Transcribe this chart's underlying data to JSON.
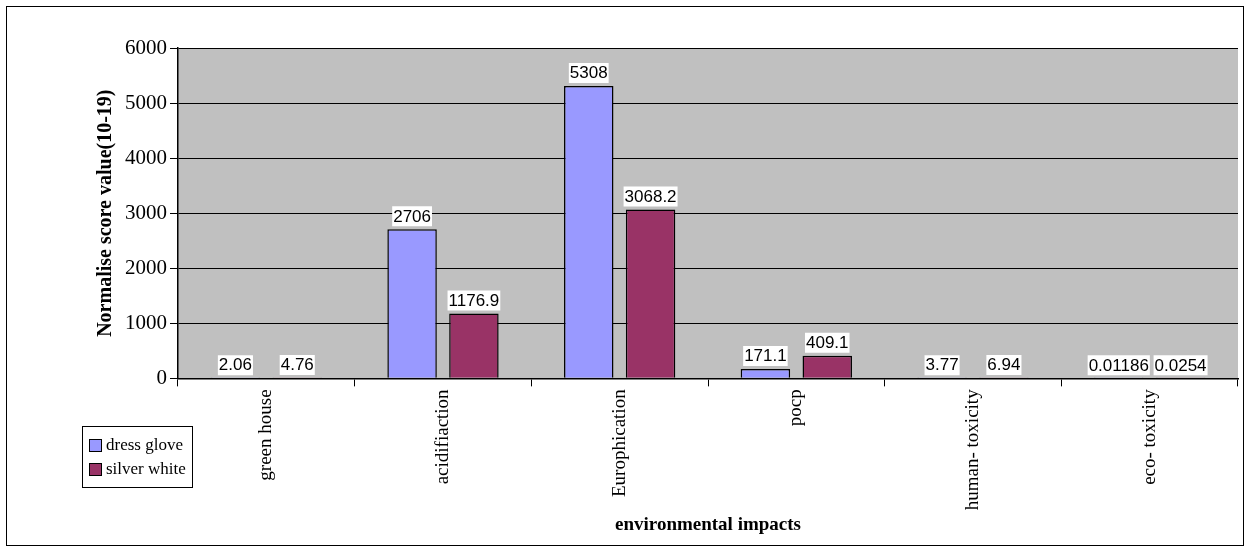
{
  "chart_data": {
    "type": "bar",
    "xlabel": "environmental impacts",
    "ylabel": "Normalise score value(10-19)",
    "categories": [
      "green house",
      "acidifiaction",
      "Europhication",
      "pocp",
      "human- toxicity",
      "eco- toxicity"
    ],
    "series": [
      {
        "name": "dress glove",
        "color": "#9999ff",
        "values": [
          2.06,
          2706,
          5308,
          171.1,
          3.77,
          0.01186
        ]
      },
      {
        "name": "silver white",
        "color": "#993366",
        "values": [
          4.76,
          1176.9,
          3068.2,
          409.1,
          6.94,
          0.0254
        ]
      }
    ],
    "ylim": [
      0,
      6000
    ],
    "yticks": [
      0,
      1000,
      2000,
      3000,
      4000,
      5000,
      6000
    ],
    "grid": "y",
    "legend": "bottom left",
    "data_labels": true
  }
}
